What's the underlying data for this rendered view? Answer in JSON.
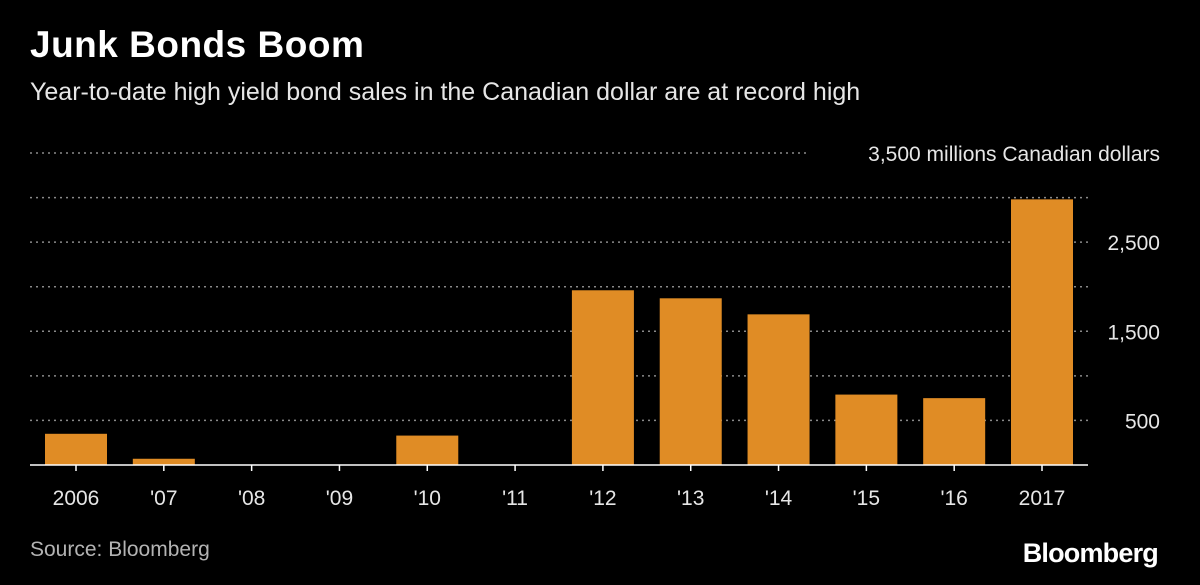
{
  "header": {
    "title": "Junk Bonds Boom",
    "subtitle": "Year-to-date high yield bond sales in the Canadian dollar are at record high"
  },
  "footer": {
    "source": "Source: Bloomberg",
    "logo": "Bloomberg"
  },
  "colors": {
    "background": "#000000",
    "bar": "#e08c25",
    "text": "#ffffff",
    "muted_text": "#b3b3b3",
    "gridline": "#8a8a8a"
  },
  "chart_data": {
    "type": "bar",
    "title": "Junk Bonds Boom",
    "subtitle": "Year-to-date high yield bond sales in the Canadian dollar are at record high",
    "xlabel": "",
    "ylabel": "",
    "ylim": [
      0,
      3500
    ],
    "unit_label": "3,500 millions Canadian dollars",
    "yticks": [
      {
        "value": 500,
        "label": "500"
      },
      {
        "value": 1000,
        "label": ""
      },
      {
        "value": 1500,
        "label": "1,500"
      },
      {
        "value": 2000,
        "label": ""
      },
      {
        "value": 2500,
        "label": "2,500"
      },
      {
        "value": 3000,
        "label": ""
      },
      {
        "value": 3500,
        "label": "3,500 millions Canadian dollars"
      }
    ],
    "grid": true,
    "legend": "none",
    "categories": [
      "2006",
      "'07",
      "'08",
      "'09",
      "'10",
      "'11",
      "'12",
      "'13",
      "'14",
      "'15",
      "'16",
      "2017"
    ],
    "values": [
      350,
      70,
      0,
      0,
      330,
      0,
      1960,
      1870,
      1690,
      790,
      750,
      2980
    ]
  }
}
